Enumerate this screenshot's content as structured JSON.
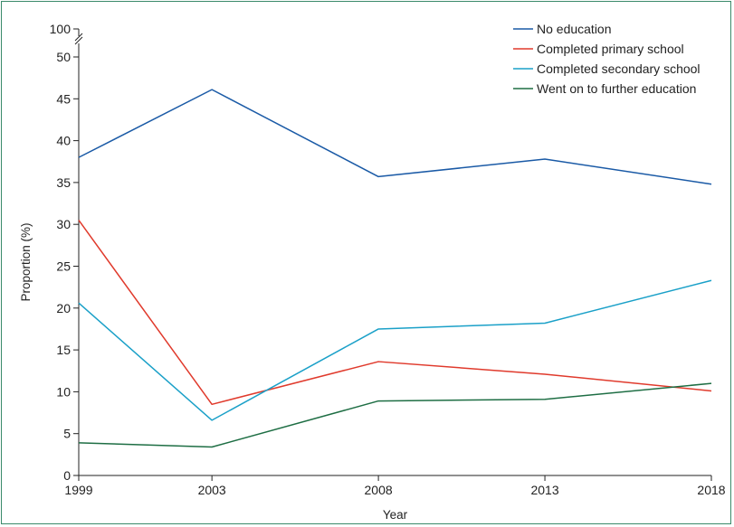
{
  "chart_data": {
    "type": "line",
    "xlabel": "Year",
    "ylabel": "Proportion (%)",
    "x": [
      1999,
      2003,
      2008,
      2013,
      2018
    ],
    "xticks": [
      "1999",
      "2003",
      "2008",
      "2013",
      "2018"
    ],
    "ylim": [
      0,
      50
    ],
    "yticks": [
      "0",
      "5",
      "10",
      "15",
      "20",
      "25",
      "30",
      "35",
      "40",
      "45",
      "50"
    ],
    "y_break_top_label": "100",
    "legend_position": "top-right",
    "series": [
      {
        "name": "No education",
        "color": "#1a5aa6",
        "values": [
          38.0,
          46.1,
          35.7,
          37.8,
          34.8
        ]
      },
      {
        "name": "Completed primary school",
        "color": "#e03a2c",
        "values": [
          30.5,
          8.5,
          13.6,
          12.1,
          10.1
        ]
      },
      {
        "name": "Completed secondary school",
        "color": "#1aa0c8",
        "values": [
          20.6,
          6.6,
          17.5,
          18.2,
          23.3
        ]
      },
      {
        "name": "Went on to further education",
        "color": "#1e6e44",
        "values": [
          3.9,
          3.4,
          8.9,
          9.1,
          11.0
        ]
      }
    ]
  }
}
